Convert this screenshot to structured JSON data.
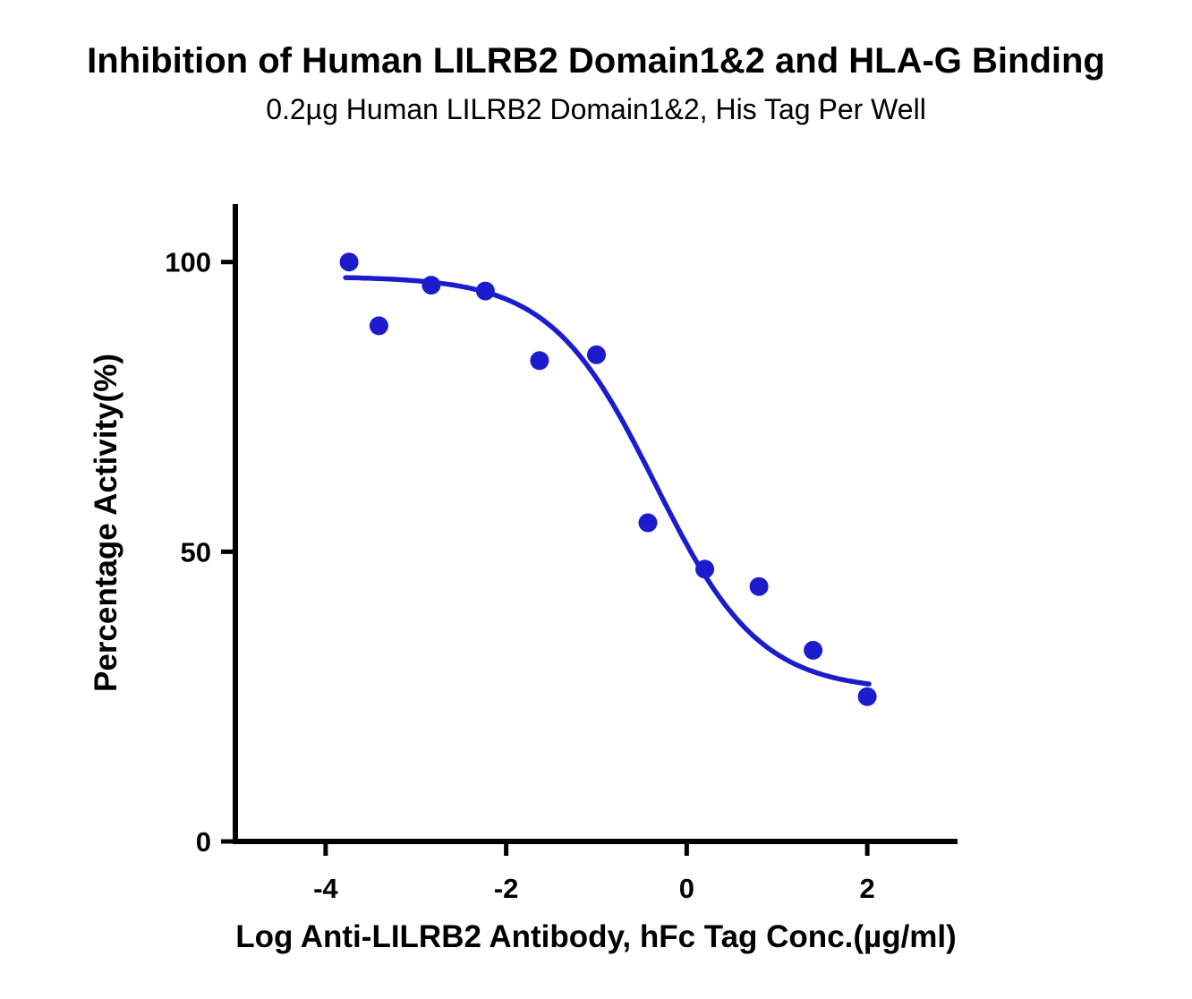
{
  "chart_data": {
    "type": "scatter",
    "title": "Inhibition of Human LILRB2 Domain1&2 and HLA-G Binding",
    "subtitle": "0.2µg Human LILRB2 Domain1&2, His Tag Per Well",
    "xlabel": "Log Anti-LILRB2 Antibody, hFc Tag Conc.(µg/ml)",
    "ylabel": "Percentage Activity(%)",
    "xlim": [
      -5.0,
      3.0
    ],
    "ylim": [
      0,
      110
    ],
    "xticks": [
      -4,
      -2,
      0,
      2
    ],
    "yticks": [
      0,
      50,
      100
    ],
    "grid": false,
    "legend": null,
    "colors": {
      "points": "#1c1ccd",
      "curve": "#1c1ccd",
      "axis": "#000000"
    },
    "series": [
      {
        "name": "Anti-LILRB2 Antibody, hFc Tag",
        "points": [
          {
            "x": -3.74,
            "y": 100
          },
          {
            "x": -3.41,
            "y": 89
          },
          {
            "x": -2.83,
            "y": 96
          },
          {
            "x": -2.23,
            "y": 95
          },
          {
            "x": -1.63,
            "y": 83
          },
          {
            "x": -1.0,
            "y": 84
          },
          {
            "x": -0.43,
            "y": 55
          },
          {
            "x": 0.2,
            "y": 47
          },
          {
            "x": 0.8,
            "y": 44
          },
          {
            "x": 1.4,
            "y": 33
          },
          {
            "x": 2.0,
            "y": 25
          }
        ]
      }
    ],
    "fit_curve": {
      "model": "4PL",
      "top": 97.5,
      "bottom": 26,
      "logIC50": -0.35,
      "hillslope": -0.75,
      "x_start": -3.78,
      "x_end": 2.02
    }
  }
}
